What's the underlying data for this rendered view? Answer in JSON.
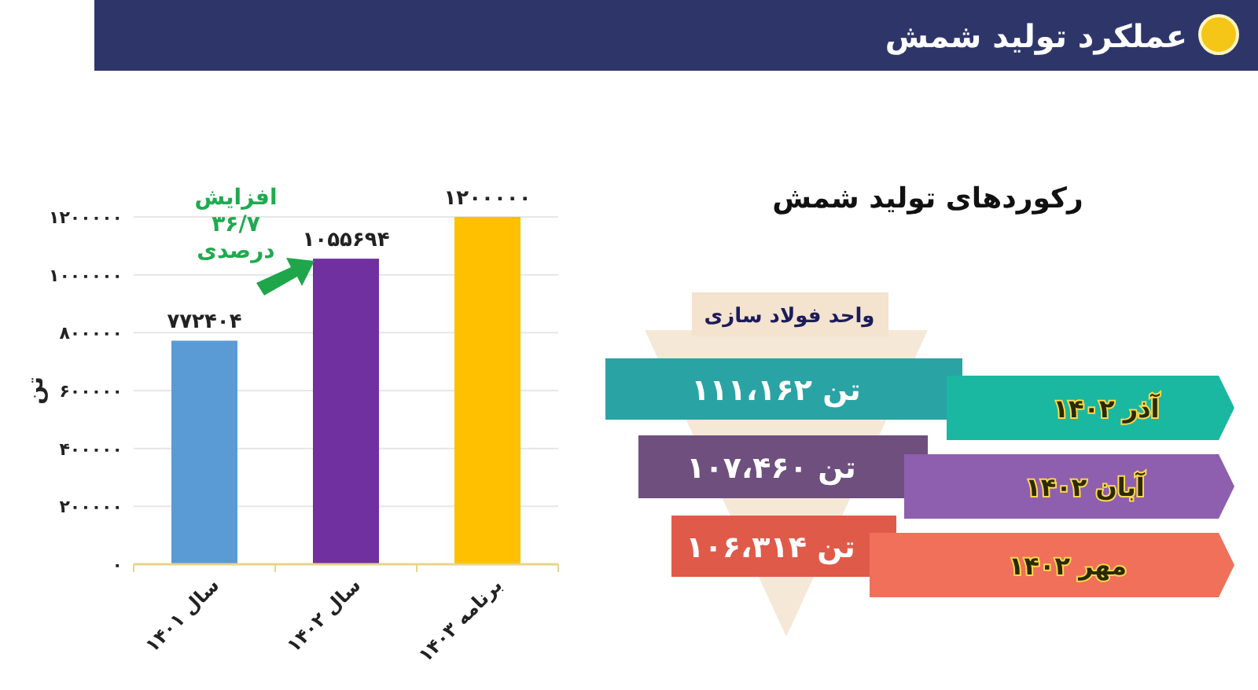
{
  "chart_data": [
    {
      "type": "other",
      "title": "عملکرد تولید شمش"
    },
    {
      "type": "bar",
      "ylabel": "تن",
      "categories": [
        "سال ۱۴۰۱",
        "سال ۱۴۰۲",
        "برنامه ۱۴۰۳"
      ],
      "values": [
        772404,
        1055694,
        1200000
      ],
      "colors": [
        "#5b9bd5",
        "#7030a0",
        "#ffc000"
      ],
      "value_labels": [
        "۷۷۲۴۰۴",
        "۱۰۵۵۶۹۴",
        "۱۲۰۰۰۰۰"
      ],
      "ylim": [
        0,
        1200000
      ],
      "yticks": [
        {
          "value": 0,
          "label": "۰"
        },
        {
          "value": 200000,
          "label": "۲۰۰۰۰۰"
        },
        {
          "value": 400000,
          "label": "۴۰۰۰۰۰"
        },
        {
          "value": 600000,
          "label": "۶۰۰۰۰۰"
        },
        {
          "value": 800000,
          "label": "۸۰۰۰۰۰"
        },
        {
          "value": 1000000,
          "label": "۱۰۰۰۰۰۰"
        },
        {
          "value": 1200000,
          "label": "۱۲۰۰۰۰۰"
        }
      ],
      "grid": "y",
      "annotations": [
        "افزایش\n۳۶/۷\nدرصدی"
      ]
    },
    {
      "type": "other",
      "title": "رکوردهای تولید شمش",
      "annotations": [
        "واحد فولاد سازی",
        "۱۱۱،۱۶۲ تن",
        "آذر ۱۴۰۲",
        "۱۰۷،۴۶۰ تن",
        "آبان ۱۴۰۲",
        "۱۰۶،۳۱۴ تن",
        "مهر ۱۴۰۲"
      ]
    }
  ]
}
